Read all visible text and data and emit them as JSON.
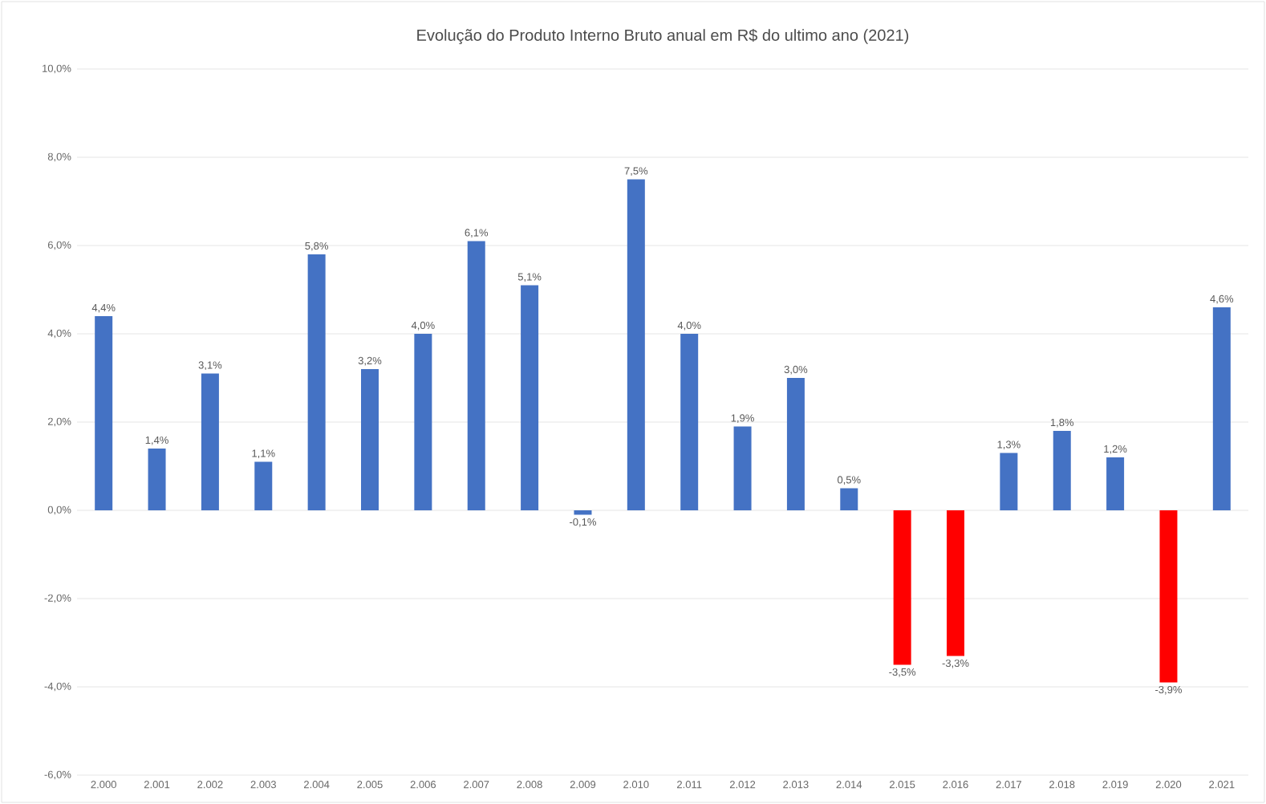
{
  "chart_data": {
    "type": "bar",
    "title": "Evolução do Produto Interno Bruto anual em R$ do ultimo ano (2021)",
    "categories": [
      "2.000",
      "2.001",
      "2.002",
      "2.003",
      "2.004",
      "2.005",
      "2.006",
      "2.007",
      "2.008",
      "2.009",
      "2.010",
      "2.011",
      "2.012",
      "2.013",
      "2.014",
      "2.015",
      "2.016",
      "2.017",
      "2.018",
      "2.019",
      "2.020",
      "2.021"
    ],
    "values": [
      4.4,
      1.4,
      3.1,
      1.1,
      5.8,
      3.2,
      4.0,
      6.1,
      5.1,
      -0.1,
      7.5,
      4.0,
      1.9,
      3.0,
      0.5,
      -3.5,
      -3.3,
      1.3,
      1.8,
      1.2,
      -3.9,
      4.6
    ],
    "value_labels": [
      "4,4%",
      "1,4%",
      "3,1%",
      "1,1%",
      "5,8%",
      "3,2%",
      "4,0%",
      "6,1%",
      "5,1%",
      "-0,1%",
      "7,5%",
      "4,0%",
      "1,9%",
      "3,0%",
      "0,5%",
      "-3,5%",
      "-3,3%",
      "1,3%",
      "1,8%",
      "1,2%",
      "-3,9%",
      "4,6%"
    ],
    "colors": [
      "#4472c4",
      "#4472c4",
      "#4472c4",
      "#4472c4",
      "#4472c4",
      "#4472c4",
      "#4472c4",
      "#4472c4",
      "#4472c4",
      "#4472c4",
      "#4472c4",
      "#4472c4",
      "#4472c4",
      "#4472c4",
      "#4472c4",
      "#ff0000",
      "#ff0000",
      "#4472c4",
      "#4472c4",
      "#4472c4",
      "#ff0000",
      "#4472c4"
    ],
    "ylim": [
      -6,
      10
    ],
    "yticks": [
      {
        "value": -6,
        "label": "-6,0%"
      },
      {
        "value": -4,
        "label": "-4,0%"
      },
      {
        "value": -2,
        "label": "-2,0%"
      },
      {
        "value": 0,
        "label": "0,0%"
      },
      {
        "value": 2,
        "label": "2,0%"
      },
      {
        "value": 4,
        "label": "4,0%"
      },
      {
        "value": 6,
        "label": "6,0%"
      },
      {
        "value": 8,
        "label": "8,0%"
      },
      {
        "value": 10,
        "label": "10,0%"
      }
    ],
    "grid": "y"
  }
}
